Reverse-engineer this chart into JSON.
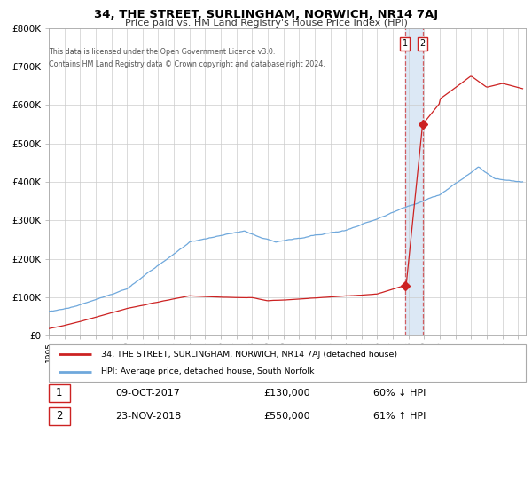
{
  "title": "34, THE STREET, SURLINGHAM, NORWICH, NR14 7AJ",
  "subtitle": "Price paid vs. HM Land Registry's House Price Index (HPI)",
  "legend_line1": "34, THE STREET, SURLINGHAM, NORWICH, NR14 7AJ (detached house)",
  "legend_line2": "HPI: Average price, detached house, South Norfolk",
  "footnote1": "Contains HM Land Registry data © Crown copyright and database right 2024.",
  "footnote2": "This data is licensed under the Open Government Licence v3.0.",
  "transaction1_date": "09-OCT-2017",
  "transaction1_price": "£130,000",
  "transaction1_hpi": "60% ↓ HPI",
  "transaction2_date": "23-NOV-2018",
  "transaction2_price": "£550,000",
  "transaction2_hpi": "61% ↑ HPI",
  "hpi_color": "#6fa8dc",
  "price_color": "#cc2222",
  "highlight_color": "#dce8f5",
  "box_color": "#cc2222",
  "ylim": [
    0,
    800000
  ],
  "xlim_start": 1995.0,
  "xlim_end": 2025.5,
  "transaction1_x": 2017.78,
  "transaction1_y": 130000,
  "transaction2_x": 2018.9,
  "transaction2_y": 550000
}
